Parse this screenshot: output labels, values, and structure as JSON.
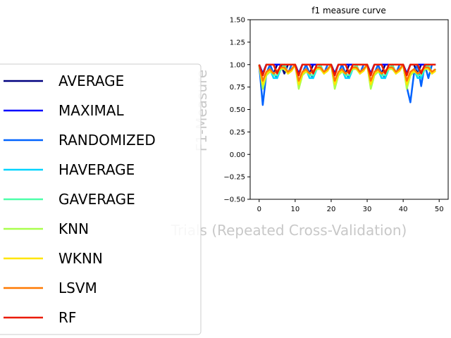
{
  "chart_data": {
    "type": "line",
    "title": "f1 measure curve",
    "xlabel": "Trials (Repeated Cross-Validation)",
    "ylabel": "F1-Measure",
    "xlim": [
      -2.5,
      52.5
    ],
    "ylim": [
      -0.5,
      1.5
    ],
    "xticks": [
      0,
      10,
      20,
      30,
      40,
      50
    ],
    "yticks": [
      -0.5,
      -0.25,
      0.0,
      0.25,
      0.5,
      0.75,
      1.0,
      1.25,
      1.5
    ],
    "xtick_labels": [
      "0",
      "10",
      "20",
      "30",
      "40",
      "50"
    ],
    "ytick_labels": [
      "−0.50",
      "−0.25",
      "0.00",
      "0.25",
      "0.50",
      "0.75",
      "1.00",
      "1.25",
      "1.50"
    ],
    "grid": false,
    "legend_position": "left",
    "x": [
      0,
      1,
      2,
      3,
      4,
      5,
      6,
      7,
      8,
      9,
      10,
      11,
      12,
      13,
      14,
      15,
      16,
      17,
      18,
      19,
      20,
      21,
      22,
      23,
      24,
      25,
      26,
      27,
      28,
      29,
      30,
      31,
      32,
      33,
      34,
      35,
      36,
      37,
      38,
      39,
      40,
      41,
      42,
      43,
      44,
      45,
      46,
      47,
      48,
      49
    ],
    "series": [
      {
        "name": "AVERAGE",
        "color": "#00007f",
        "values": [
          1,
          0.9,
          1,
          1,
          0.9,
          1,
          1,
          0.9,
          1,
          1,
          1,
          0.9,
          1,
          1,
          0.9,
          1,
          1,
          1,
          1,
          1,
          1,
          0.9,
          1,
          1,
          0.9,
          1,
          1,
          1,
          1,
          1,
          1,
          0.9,
          1,
          1,
          0.9,
          1,
          1,
          1,
          1,
          1,
          1,
          0.9,
          1,
          1,
          0.9,
          1,
          1,
          1,
          1,
          1
        ]
      },
      {
        "name": "MAXIMAL",
        "color": "#0000ff",
        "values": [
          1,
          0.9,
          1,
          1,
          1,
          1,
          1,
          1,
          1,
          1,
          1,
          0.9,
          1,
          1,
          1,
          1,
          1,
          1,
          1,
          1,
          1,
          0.9,
          1,
          1,
          1,
          1,
          1,
          1,
          1,
          1,
          1,
          0.9,
          1,
          1,
          1,
          1,
          1,
          1,
          1,
          1,
          1,
          0.9,
          1,
          1,
          1,
          1,
          1,
          1,
          1,
          1
        ]
      },
      {
        "name": "RANDOMIZED",
        "color": "#0063ff",
        "values": [
          1,
          0.55,
          0.9,
          1,
          0.9,
          0.85,
          1,
          1,
          0.9,
          1,
          1,
          0.8,
          0.9,
          1,
          0.9,
          0.85,
          1,
          1,
          0.9,
          1,
          1,
          0.8,
          0.9,
          1,
          0.9,
          0.85,
          1,
          1,
          0.9,
          1,
          1,
          0.8,
          0.9,
          1,
          0.9,
          0.85,
          1,
          1,
          0.9,
          1,
          1,
          0.75,
          0.58,
          0.9,
          1,
          0.76,
          1,
          0.85,
          1,
          1
        ]
      },
      {
        "name": "HAVERAGE",
        "color": "#00d4ff",
        "values": [
          1,
          0.75,
          0.9,
          0.95,
          0.85,
          0.85,
          0.95,
          1,
          0.9,
          0.95,
          1,
          0.75,
          0.9,
          0.95,
          0.85,
          0.85,
          0.95,
          1,
          0.9,
          0.95,
          1,
          0.75,
          0.9,
          0.95,
          0.85,
          0.85,
          0.95,
          1,
          0.9,
          0.95,
          1,
          0.75,
          0.9,
          0.95,
          0.85,
          0.85,
          0.95,
          1,
          0.9,
          0.95,
          1,
          0.75,
          0.9,
          0.95,
          0.85,
          0.85,
          0.95,
          1,
          0.9,
          0.95
        ]
      },
      {
        "name": "GAVERAGE",
        "color": "#4dffa9",
        "values": [
          1,
          0.77,
          0.9,
          0.95,
          0.88,
          0.88,
          0.95,
          1,
          0.9,
          0.95,
          1,
          0.77,
          0.9,
          0.95,
          0.88,
          0.88,
          0.95,
          1,
          0.9,
          0.95,
          1,
          0.77,
          0.9,
          0.95,
          0.88,
          0.88,
          0.95,
          1,
          0.9,
          0.95,
          1,
          0.77,
          0.9,
          0.95,
          0.88,
          0.88,
          0.95,
          1,
          0.9,
          0.95,
          1,
          0.77,
          0.9,
          0.95,
          0.88,
          0.88,
          0.95,
          1,
          0.9,
          0.95
        ]
      },
      {
        "name": "KNN",
        "color": "#a9ff4d",
        "values": [
          1,
          0.73,
          0.88,
          0.92,
          0.9,
          0.92,
          0.95,
          0.95,
          0.9,
          0.93,
          1,
          0.73,
          0.88,
          0.92,
          0.9,
          0.92,
          0.95,
          0.95,
          0.9,
          0.93,
          1,
          0.73,
          0.88,
          0.92,
          0.9,
          0.92,
          0.95,
          0.95,
          0.9,
          0.93,
          1,
          0.73,
          0.88,
          0.92,
          0.9,
          0.92,
          0.95,
          0.95,
          0.9,
          0.93,
          1,
          0.73,
          0.88,
          0.92,
          0.9,
          0.92,
          0.95,
          0.95,
          0.9,
          0.93
        ]
      },
      {
        "name": "WKNN",
        "color": "#ffe500",
        "values": [
          1,
          0.78,
          0.9,
          0.93,
          0.9,
          0.93,
          0.96,
          0.96,
          0.9,
          0.93,
          1,
          0.78,
          0.9,
          0.93,
          0.9,
          0.93,
          0.96,
          0.96,
          0.9,
          0.93,
          1,
          0.78,
          0.9,
          0.93,
          0.9,
          0.93,
          0.96,
          0.96,
          0.9,
          0.93,
          1,
          0.78,
          0.9,
          0.93,
          0.9,
          0.93,
          0.96,
          0.96,
          0.9,
          0.93,
          1,
          0.78,
          0.9,
          0.93,
          0.9,
          0.93,
          0.96,
          0.96,
          0.9,
          0.93
        ]
      },
      {
        "name": "LSVM",
        "color": "#ff7900",
        "values": [
          1,
          0.82,
          0.92,
          0.95,
          0.9,
          0.93,
          0.97,
          0.97,
          0.92,
          0.95,
          1,
          0.82,
          0.92,
          0.95,
          0.9,
          0.93,
          0.97,
          0.97,
          0.92,
          0.95,
          1,
          0.82,
          0.92,
          0.95,
          0.9,
          0.93,
          0.97,
          0.97,
          0.92,
          0.95,
          1,
          0.82,
          0.92,
          0.95,
          0.9,
          0.93,
          0.97,
          0.97,
          0.92,
          0.95,
          1,
          0.82,
          0.92,
          0.95,
          0.9,
          0.93,
          0.97,
          0.97,
          0.92,
          0.95
        ]
      },
      {
        "name": "RF",
        "color": "#ea1a00",
        "values": [
          1,
          0.88,
          1,
          1,
          1,
          0.9,
          1,
          1,
          1,
          1,
          1,
          0.88,
          1,
          1,
          1,
          0.9,
          1,
          1,
          1,
          1,
          1,
          0.88,
          1,
          1,
          1,
          0.9,
          1,
          1,
          1,
          1,
          1,
          0.88,
          1,
          1,
          1,
          0.9,
          1,
          1,
          1,
          1,
          1,
          0.88,
          1,
          1,
          1,
          0.9,
          1,
          1,
          1,
          1
        ]
      }
    ]
  }
}
